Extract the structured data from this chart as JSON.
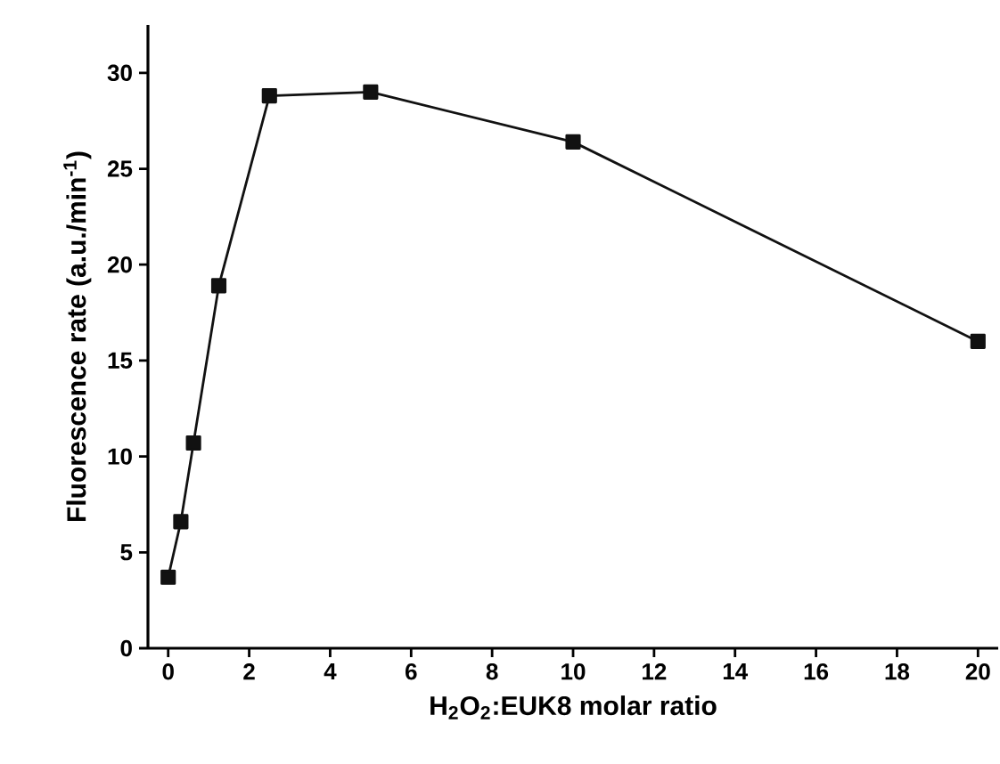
{
  "chart_data": {
    "type": "line",
    "xlabel": "H$_{2}$O$_{2}$:EUK8 molar ratio",
    "ylabel": "Fluorescence rate (a.u./min$^{-1}$)",
    "x": [
      0,
      0.3125,
      0.625,
      1.25,
      2.5,
      5,
      10,
      20
    ],
    "series": [
      {
        "color": "#111111",
        "values": [
          3.7,
          6.6,
          10.7,
          18.9,
          28.8,
          29.0,
          26.4,
          16.0
        ]
      }
    ],
    "xlim": [
      -0.5,
      20.5
    ],
    "ylim": [
      0,
      32.5
    ],
    "xticks": [
      0,
      2,
      4,
      6,
      8,
      10,
      12,
      14,
      16,
      18,
      20
    ],
    "yticks": [
      0,
      5,
      10,
      15,
      20,
      25,
      30
    ],
    "marker": "square",
    "line_style": "solid"
  }
}
